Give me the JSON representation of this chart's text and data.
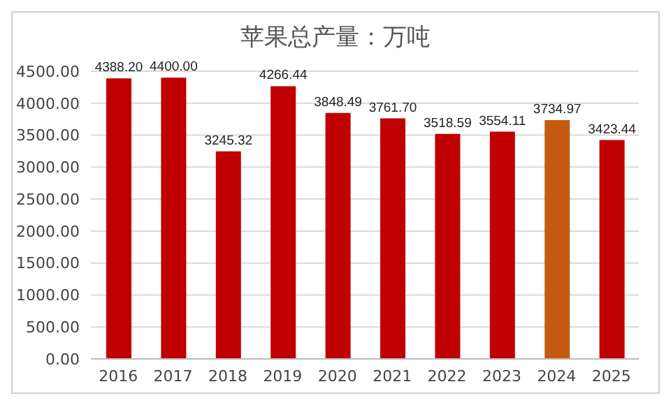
{
  "chart_data": {
    "type": "bar",
    "title": "苹果总产量：万吨",
    "categories": [
      "2016",
      "2017",
      "2018",
      "2019",
      "2020",
      "2021",
      "2022",
      "2023",
      "2024",
      "2025"
    ],
    "values": [
      4388.2,
      4400.0,
      3245.32,
      4266.44,
      3848.49,
      3761.7,
      3518.59,
      3554.11,
      3734.97,
      3423.44
    ],
    "colors": [
      "#c00000",
      "#c00000",
      "#c00000",
      "#c00000",
      "#c00000",
      "#c00000",
      "#c00000",
      "#c00000",
      "#c55a11",
      "#c00000"
    ],
    "value_labels": [
      "4388.20",
      "4400.00",
      "3245.32",
      "4266.44",
      "3848.49",
      "3761.70",
      "3518.59",
      "3554.11",
      "3734.97",
      "3423.44"
    ],
    "ylim": [
      0,
      4500
    ],
    "yticks": [
      {
        "value": 0,
        "label": "0.00"
      },
      {
        "value": 500,
        "label": "500.00"
      },
      {
        "value": 1000,
        "label": "1000.00"
      },
      {
        "value": 1500,
        "label": "1500.00"
      },
      {
        "value": 2000,
        "label": "2000.00"
      },
      {
        "value": 2500,
        "label": "2500.00"
      },
      {
        "value": 3000,
        "label": "3000.00"
      },
      {
        "value": 3500,
        "label": "3500.00"
      },
      {
        "value": 4000,
        "label": "4000.00"
      },
      {
        "value": 4500,
        "label": "4500.00"
      }
    ],
    "grid": "y",
    "legend": false
  }
}
